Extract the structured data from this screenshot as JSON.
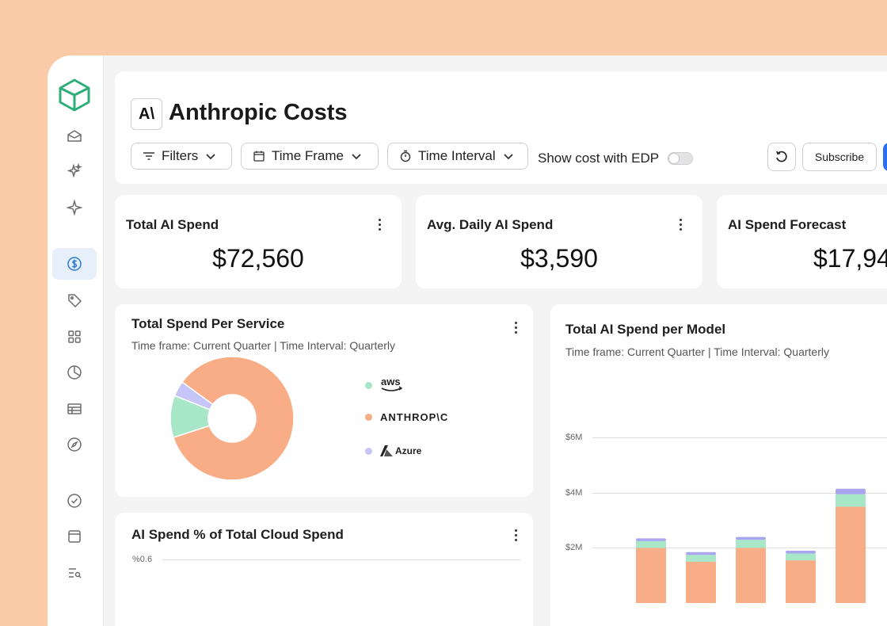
{
  "header": {
    "brand_mark": "A\\",
    "title": "Anthropic Costs",
    "filters_label": "Filters",
    "time_frame_label": "Time Frame",
    "time_interval_label": "Time Interval",
    "edp_label": "Show cost with EDP",
    "subscribe_label": "Subscribe"
  },
  "stats": [
    {
      "title": "Total AI Spend",
      "value": "$72,560"
    },
    {
      "title": "Avg. Daily AI Spend",
      "value": "$3,590"
    },
    {
      "title": "AI Spend Forecast",
      "value": "$17,94"
    }
  ],
  "service_panel": {
    "title": "Total Spend Per Service",
    "subtitle": "Time frame: Current Quarter | Time Interval: Quarterly",
    "legend": [
      {
        "label": "aws",
        "color": "#a8e6c8"
      },
      {
        "label": "ANTHROP\\C",
        "color": "#f9ad87"
      },
      {
        "label": "Azure",
        "color": "#c5c6f7"
      }
    ]
  },
  "cloud_panel": {
    "title": "AI Spend % of Total Cloud Spend",
    "y_tick": "%0.6"
  },
  "model_panel": {
    "title": "Total AI Spend per Model",
    "subtitle": "Time frame: Current Quarter | Time Interval: Quarterly",
    "y_ticks": [
      "$6M",
      "$4M",
      "$2M"
    ]
  },
  "chart_data": [
    {
      "type": "pie",
      "title": "Total Spend Per Service",
      "labels": [
        "aws",
        "ANTHROP\\C",
        "Azure"
      ],
      "values": [
        11,
        85,
        4
      ],
      "colors": [
        "#a8e6c8",
        "#f9ad87",
        "#c5c6f7"
      ]
    },
    {
      "type": "bar",
      "title": "Total AI Spend per Model",
      "ylim": [
        0,
        6
      ],
      "y_ticks": [
        "$6M",
        "$4M",
        "$2M"
      ],
      "series": [
        {
          "values": [
            2.0,
            1.5,
            2.0,
            1.55,
            3.5
          ],
          "color": "#f9ad87"
        },
        {
          "values": [
            0.25,
            0.25,
            0.3,
            0.25,
            0.45
          ],
          "color": "#a8e6c8"
        },
        {
          "values": [
            0.1,
            0.1,
            0.1,
            0.1,
            0.2
          ],
          "color": "#a9a6ef"
        }
      ]
    }
  ]
}
